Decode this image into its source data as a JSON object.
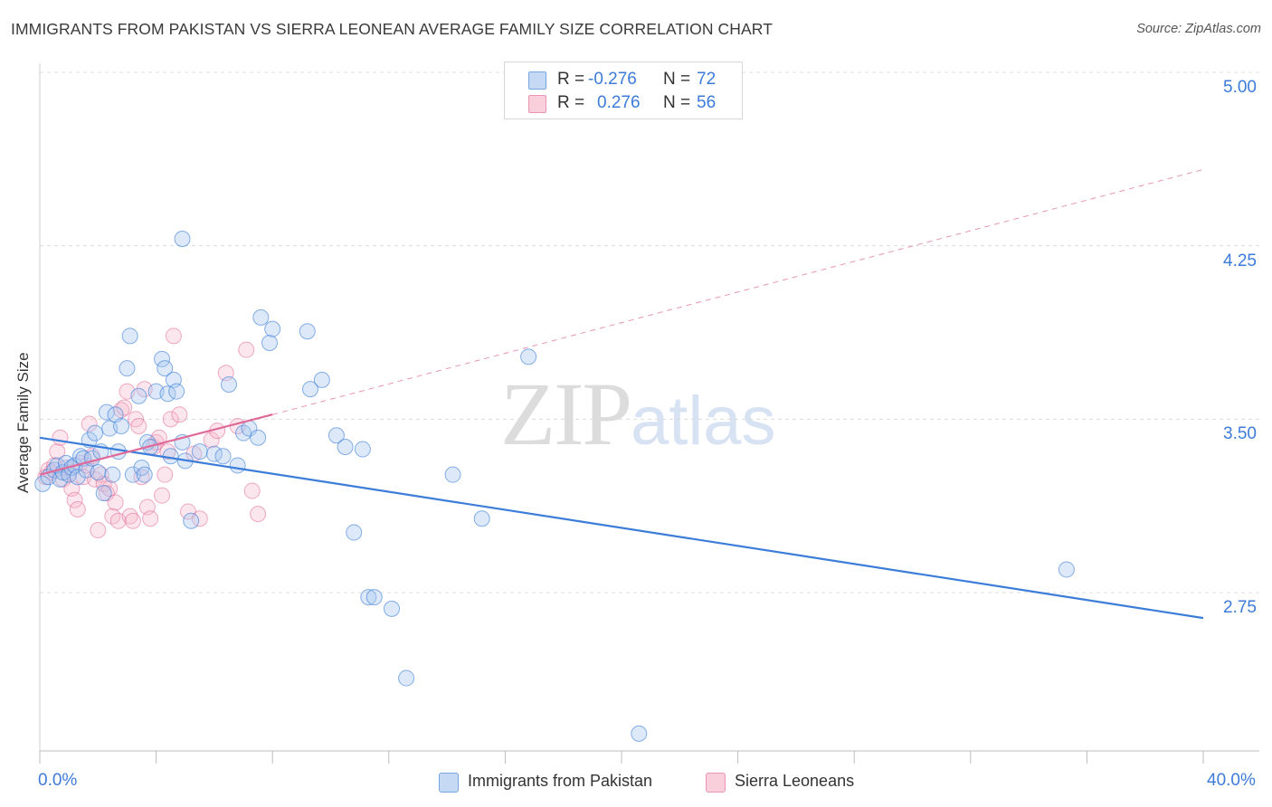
{
  "header": {
    "title": "IMMIGRANTS FROM PAKISTAN VS SIERRA LEONEAN AVERAGE FAMILY SIZE CORRELATION CHART",
    "source": "Source: ZipAtlas.com"
  },
  "watermark": {
    "zip": "ZIP",
    "atlas": "atlas"
  },
  "legend": {
    "series1": {
      "r_label": "R =",
      "r_value": "-0.276",
      "n_label": "N =",
      "n_value": "72",
      "color": "#a9c8f0"
    },
    "series2": {
      "r_label": "R =",
      "r_value": "0.276",
      "n_label": "N =",
      "n_value": "56",
      "color": "#f6b8cc"
    }
  },
  "bottom_legend": {
    "series1": "Immigrants from Pakistan",
    "series2": "Sierra Leoneans"
  },
  "colors": {
    "blue": "#3b7dd8",
    "blue_fill": "#a9c8f0",
    "pink": "#e06a97",
    "pink_fill": "#f6b8cc",
    "grid": "#dcdcdc",
    "axis_label": "#3d7bd9"
  },
  "chart_data": {
    "type": "scatter",
    "title": "IMMIGRANTS FROM PAKISTAN VS SIERRA LEONEAN AVERAGE FAMILY SIZE CORRELATION CHART",
    "xlabel": "",
    "ylabel": "Average Family Size",
    "xlim": [
      0,
      40
    ],
    "ylim": [
      2.0,
      5.1
    ],
    "x_tick_labels": [
      "0.0%",
      "40.0%"
    ],
    "y_ticks": [
      2.75,
      3.5,
      4.25,
      5.0
    ],
    "y_tick_labels": [
      "2.75",
      "3.50",
      "4.25",
      "5.00"
    ],
    "grid": true,
    "series": [
      {
        "name": "Immigrants from Pakistan",
        "r": -0.276,
        "n": 72,
        "trend": {
          "x": [
            0,
            40
          ],
          "y": [
            3.42,
            2.64
          ]
        },
        "points": [
          [
            0.1,
            3.22
          ],
          [
            0.3,
            3.25
          ],
          [
            0.5,
            3.28
          ],
          [
            0.6,
            3.3
          ],
          [
            0.7,
            3.24
          ],
          [
            0.8,
            3.27
          ],
          [
            0.9,
            3.31
          ],
          [
            1.0,
            3.26
          ],
          [
            1.1,
            3.29
          ],
          [
            1.2,
            3.3
          ],
          [
            1.3,
            3.25
          ],
          [
            1.4,
            3.34
          ],
          [
            1.5,
            3.33
          ],
          [
            1.6,
            3.28
          ],
          [
            1.7,
            3.41
          ],
          [
            1.8,
            3.33
          ],
          [
            1.9,
            3.44
          ],
          [
            2.0,
            3.27
          ],
          [
            2.1,
            3.36
          ],
          [
            2.2,
            3.18
          ],
          [
            2.3,
            3.53
          ],
          [
            2.4,
            3.46
          ],
          [
            2.5,
            3.26
          ],
          [
            2.6,
            3.52
          ],
          [
            2.7,
            3.36
          ],
          [
            2.8,
            3.47
          ],
          [
            3.0,
            3.72
          ],
          [
            3.1,
            3.86
          ],
          [
            3.2,
            3.26
          ],
          [
            3.4,
            3.6
          ],
          [
            3.5,
            3.29
          ],
          [
            3.6,
            3.26
          ],
          [
            3.7,
            3.4
          ],
          [
            3.8,
            3.38
          ],
          [
            4.0,
            3.62
          ],
          [
            4.2,
            3.76
          ],
          [
            4.3,
            3.72
          ],
          [
            4.4,
            3.61
          ],
          [
            4.5,
            3.34
          ],
          [
            4.6,
            3.67
          ],
          [
            4.7,
            3.62
          ],
          [
            4.9,
            3.4
          ],
          [
            5.0,
            3.32
          ],
          [
            4.9,
            4.28
          ],
          [
            5.2,
            3.06
          ],
          [
            5.5,
            3.36
          ],
          [
            6.0,
            3.35
          ],
          [
            6.3,
            3.34
          ],
          [
            6.5,
            3.65
          ],
          [
            6.8,
            3.3
          ],
          [
            7.0,
            3.44
          ],
          [
            7.2,
            3.46
          ],
          [
            7.5,
            3.42
          ],
          [
            7.6,
            3.94
          ],
          [
            7.9,
            3.83
          ],
          [
            8.0,
            3.89
          ],
          [
            9.2,
            3.88
          ],
          [
            9.3,
            3.63
          ],
          [
            9.7,
            3.67
          ],
          [
            10.2,
            3.43
          ],
          [
            10.5,
            3.38
          ],
          [
            11.1,
            3.37
          ],
          [
            10.8,
            3.01
          ],
          [
            11.3,
            2.73
          ],
          [
            11.5,
            2.73
          ],
          [
            12.1,
            2.68
          ],
          [
            12.6,
            2.38
          ],
          [
            14.2,
            3.26
          ],
          [
            15.2,
            3.07
          ],
          [
            16.8,
            3.77
          ],
          [
            20.6,
            2.14
          ],
          [
            35.3,
            2.85
          ]
        ]
      },
      {
        "name": "Sierra Leoneans",
        "r": 0.276,
        "n": 56,
        "trend": {
          "x": [
            0,
            8
          ],
          "y": [
            3.26,
            3.52
          ]
        },
        "trend_extended": {
          "x": [
            8,
            40
          ],
          "y": [
            3.52,
            4.58
          ]
        },
        "points": [
          [
            0.2,
            3.25
          ],
          [
            0.3,
            3.28
          ],
          [
            0.4,
            3.27
          ],
          [
            0.5,
            3.3
          ],
          [
            0.6,
            3.36
          ],
          [
            0.7,
            3.42
          ],
          [
            0.8,
            3.24
          ],
          [
            0.9,
            3.29
          ],
          [
            1.0,
            3.27
          ],
          [
            1.1,
            3.2
          ],
          [
            1.2,
            3.15
          ],
          [
            1.3,
            3.11
          ],
          [
            1.4,
            3.31
          ],
          [
            1.5,
            3.25
          ],
          [
            1.6,
            3.3
          ],
          [
            1.7,
            3.48
          ],
          [
            1.8,
            3.34
          ],
          [
            1.9,
            3.24
          ],
          [
            2.0,
            3.02
          ],
          [
            2.1,
            3.26
          ],
          [
            2.2,
            3.22
          ],
          [
            2.3,
            3.18
          ],
          [
            2.4,
            3.2
          ],
          [
            2.5,
            3.08
          ],
          [
            2.6,
            3.14
          ],
          [
            2.7,
            3.06
          ],
          [
            2.8,
            3.54
          ],
          [
            2.9,
            3.55
          ],
          [
            3.0,
            3.62
          ],
          [
            3.1,
            3.08
          ],
          [
            3.2,
            3.06
          ],
          [
            3.3,
            3.5
          ],
          [
            3.4,
            3.47
          ],
          [
            3.5,
            3.25
          ],
          [
            3.6,
            3.63
          ],
          [
            3.7,
            3.12
          ],
          [
            3.8,
            3.07
          ],
          [
            3.9,
            3.38
          ],
          [
            4.0,
            3.4
          ],
          [
            4.1,
            3.42
          ],
          [
            4.2,
            3.17
          ],
          [
            4.3,
            3.26
          ],
          [
            4.4,
            3.36
          ],
          [
            4.5,
            3.5
          ],
          [
            4.6,
            3.86
          ],
          [
            4.8,
            3.52
          ],
          [
            5.1,
            3.1
          ],
          [
            5.3,
            3.35
          ],
          [
            5.5,
            3.07
          ],
          [
            5.9,
            3.41
          ],
          [
            6.1,
            3.45
          ],
          [
            6.4,
            3.7
          ],
          [
            6.8,
            3.47
          ],
          [
            7.1,
            3.8
          ],
          [
            7.3,
            3.19
          ],
          [
            7.5,
            3.09
          ]
        ]
      }
    ]
  }
}
